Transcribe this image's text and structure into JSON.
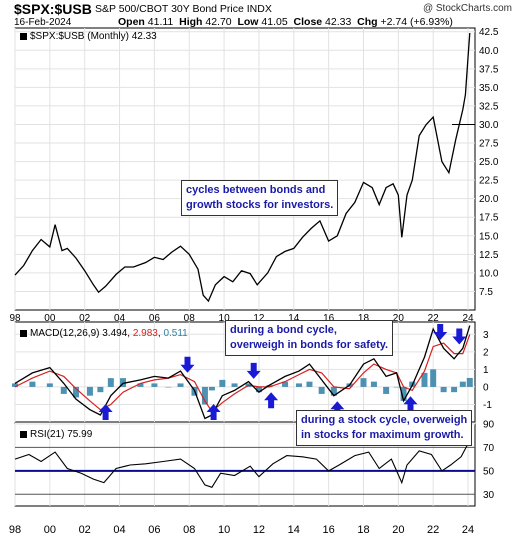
{
  "header": {
    "ticker": "$SPX:$USB",
    "subtitle": "S&P 500/CBOT 30Y Bond Price INDX",
    "date": "16-Feb-2024",
    "open_label": "Open",
    "open": "41.11",
    "high_label": "High",
    "high": "42.70",
    "low_label": "Low",
    "low": "41.05",
    "close_label": "Close",
    "close": "42.33",
    "chg_label": "Chg",
    "chg": "+2.74 (+6.93%)",
    "brand": "@ StockCharts.com"
  },
  "legends": {
    "price": "$SPX:$USB (Monthly) 42.33",
    "macd_label": "MACD(12,26,9)",
    "macd_value": "3.494",
    "signal_value": "2.983",
    "hist_value": "0.511",
    "rsi": "RSI(21) 75.99"
  },
  "annotations": {
    "cycles": [
      "cycles between bonds and",
      "growth stocks for investors."
    ],
    "bond_cycle": [
      "during a bond cycle,",
      "overweigh in bonds for safety."
    ],
    "stock_cycle": [
      "during a stock cycle, overweigh",
      "in stocks for maximum growth."
    ]
  },
  "colors": {
    "price": "#000000",
    "macd": "#000000",
    "signal": "#d62020",
    "histogram": "#2e7fa6",
    "arrow": "#1a1ad6",
    "rsi_band": "#0a0a8a",
    "annotation_text": "#1a1aa8"
  },
  "chart_data": [
    {
      "type": "line",
      "panel": "price",
      "series": [
        {
          "name": "$SPX:$USB (Monthly)",
          "x": [
            1998.0,
            1998.5,
            1999.0,
            1999.5,
            2000.0,
            2000.3,
            2000.7,
            2001.0,
            2001.5,
            2002.0,
            2002.5,
            2002.8,
            2003.2,
            2003.8,
            2004.3,
            2004.8,
            2005.5,
            2006.0,
            2006.5,
            2007.0,
            2007.5,
            2008.0,
            2008.5,
            2008.8,
            2009.1,
            2009.5,
            2010.0,
            2010.5,
            2011.0,
            2011.5,
            2011.9,
            2012.5,
            2013.0,
            2013.5,
            2014.0,
            2014.5,
            2015.0,
            2015.5,
            2016.0,
            2016.5,
            2017.0,
            2017.5,
            2018.0,
            2018.5,
            2018.9,
            2019.3,
            2019.7,
            2020.0,
            2020.2,
            2020.5,
            2020.8,
            2021.2,
            2021.6,
            2022.0,
            2022.5,
            2022.9,
            2023.3,
            2023.7,
            2023.85,
            2024.0,
            2024.1
          ],
          "y": [
            9.7,
            11.0,
            13.0,
            14.5,
            13.5,
            16.5,
            13.0,
            13.3,
            12.0,
            10.3,
            8.4,
            7.4,
            8.2,
            9.8,
            10.8,
            10.8,
            11.4,
            12.1,
            11.8,
            12.8,
            13.6,
            12.5,
            10.5,
            7.0,
            6.2,
            8.4,
            9.5,
            8.8,
            10.3,
            9.9,
            8.4,
            10.0,
            12.2,
            12.9,
            13.3,
            14.8,
            16.0,
            17.0,
            14.3,
            15.0,
            18.0,
            19.5,
            22.2,
            21.5,
            19.2,
            21.5,
            22.0,
            20.5,
            14.8,
            20.5,
            22.5,
            28.5,
            30.0,
            31.0,
            25.0,
            23.5,
            28.0,
            32.0,
            34.0,
            39.0,
            42.33
          ]
        }
      ],
      "reference_value": 30.0,
      "ylim": [
        5,
        43
      ],
      "xlim": [
        1998,
        2024.4
      ],
      "yticks": [
        "7.5",
        "10.0",
        "12.5",
        "15.0",
        "17.5",
        "20.0",
        "22.5",
        "25.0",
        "27.5",
        "30.0",
        "32.5",
        "35.0",
        "37.5",
        "40.0",
        "42.5"
      ],
      "xticks": [
        "98",
        "00",
        "02",
        "04",
        "06",
        "08",
        "10",
        "12",
        "14",
        "16",
        "18",
        "20",
        "22",
        "24"
      ],
      "grid": true
    },
    {
      "type": "line",
      "panel": "macd",
      "x": [
        1998.0,
        1999.0,
        2000.0,
        2000.8,
        2001.5,
        2002.3,
        2002.9,
        2003.5,
        2004.2,
        2005.2,
        2006.0,
        2006.8,
        2007.5,
        2008.3,
        2008.9,
        2009.3,
        2009.9,
        2010.6,
        2011.4,
        2012.0,
        2012.6,
        2013.5,
        2014.3,
        2014.9,
        2015.6,
        2016.3,
        2017.2,
        2018.0,
        2018.6,
        2019.3,
        2019.9,
        2020.3,
        2020.8,
        2021.5,
        2022.0,
        2022.6,
        2023.2,
        2023.7,
        2024.1
      ],
      "series": [
        {
          "name": "MACD",
          "values": [
            0.2,
            0.8,
            1.1,
            0.2,
            -0.7,
            -1.3,
            -1.6,
            -0.5,
            0.2,
            0.4,
            0.6,
            0.5,
            0.9,
            -0.2,
            -1.8,
            -1.6,
            -0.5,
            -0.2,
            0.3,
            -0.3,
            0.1,
            0.6,
            0.9,
            1.3,
            0.4,
            -0.5,
            0.1,
            1.3,
            1.6,
            0.6,
            0.8,
            -0.8,
            0.1,
            1.7,
            3.3,
            2.2,
            1.6,
            2.2,
            3.494
          ]
        },
        {
          "name": "Signal",
          "values": [
            0.0,
            0.5,
            0.9,
            0.6,
            -0.1,
            -0.8,
            -1.3,
            -1.0,
            -0.3,
            0.2,
            0.4,
            0.5,
            0.7,
            0.3,
            -0.8,
            -1.4,
            -0.9,
            -0.4,
            0.1,
            0.0,
            0.0,
            0.3,
            0.7,
            1.0,
            0.8,
            0.0,
            -0.1,
            0.8,
            1.3,
            1.0,
            0.8,
            0.0,
            -0.2,
            0.9,
            2.3,
            2.5,
            1.9,
            1.9,
            2.983
          ]
        }
      ],
      "histogram": "MACD minus Signal",
      "ylim": [
        -2,
        3.7
      ],
      "yticks": [
        "-1",
        "0",
        "1",
        "2",
        "3"
      ],
      "arrows": [
        {
          "x": 2003.2,
          "direction": "up"
        },
        {
          "x": 2007.9,
          "direction": "down"
        },
        {
          "x": 2009.4,
          "direction": "up"
        },
        {
          "x": 2011.7,
          "direction": "down"
        },
        {
          "x": 2012.7,
          "direction": "up"
        },
        {
          "x": 2014.9,
          "direction": "down"
        },
        {
          "x": 2016.5,
          "direction": "up"
        },
        {
          "x": 2018.7,
          "direction": "down"
        },
        {
          "x": 2020.7,
          "direction": "up"
        },
        {
          "x": 2022.4,
          "direction": "down"
        },
        {
          "x": 2023.5,
          "direction": "down"
        }
      ]
    },
    {
      "type": "line",
      "panel": "rsi",
      "series": [
        {
          "name": "RSI(21)",
          "x": [
            1998.0,
            1998.8,
            1999.5,
            2000.3,
            2001.0,
            2001.8,
            2002.5,
            2003.1,
            2003.8,
            2004.6,
            2005.5,
            2006.5,
            2007.5,
            2008.3,
            2008.9,
            2009.3,
            2009.8,
            2010.6,
            2011.5,
            2012.0,
            2012.8,
            2013.6,
            2014.5,
            2015.3,
            2016.0,
            2016.6,
            2017.5,
            2018.3,
            2018.9,
            2019.6,
            2020.2,
            2020.5,
            2021.2,
            2021.9,
            2022.5,
            2023.0,
            2023.6,
            2024.1
          ],
          "y": [
            60,
            64,
            58,
            66,
            52,
            48,
            43,
            40,
            52,
            55,
            56,
            58,
            60,
            52,
            38,
            36,
            48,
            46,
            54,
            45,
            56,
            63,
            62,
            60,
            50,
            55,
            63,
            66,
            52,
            60,
            40,
            55,
            67,
            64,
            50,
            55,
            62,
            75.99
          ]
        }
      ],
      "ylim": [
        20,
        90
      ],
      "yticks": [
        "30",
        "50",
        "70",
        "90"
      ],
      "grid": true
    }
  ]
}
